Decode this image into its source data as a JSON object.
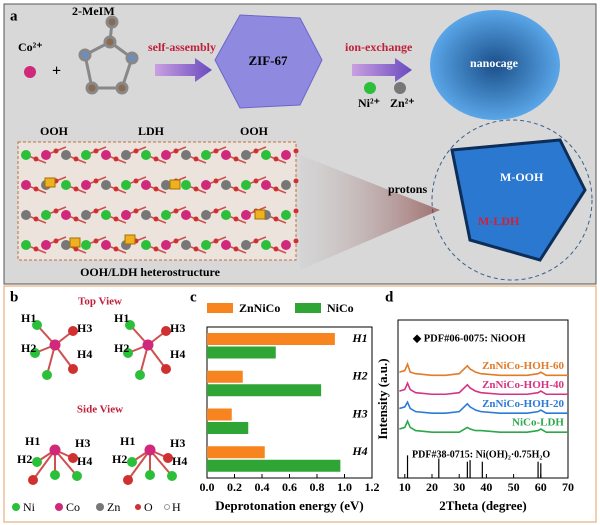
{
  "panel_a": {
    "label": "a",
    "co": "Co²⁺",
    "ligand": "2-MeIM",
    "step1": "self-assembly",
    "zif": "ZIF-67",
    "step2": "ion-exchange",
    "ni": "Ni²⁺",
    "zn": "Zn²⁺",
    "nanocage": "nanocage",
    "ooh": "OOH",
    "ldh": "LDH",
    "protons": "protons",
    "m_ooh": "M-OOH",
    "m_ldh": "M-LDH",
    "caption": "OOH/LDH heterostructure"
  },
  "panel_b": {
    "label": "b",
    "top_view": "Top View",
    "side_view": "Side View",
    "sites": [
      "H1",
      "H2",
      "H3",
      "H4"
    ],
    "legend": [
      "Ni",
      "Co",
      "Zn",
      "O",
      "H"
    ]
  },
  "chart_data": [
    {
      "type": "bar",
      "orientation": "horizontal",
      "label": "c",
      "categories": [
        "H1",
        "H2",
        "H3",
        "H4"
      ],
      "series": [
        {
          "name": "ZnNiCo",
          "color": "#f7841f",
          "values": [
            0.93,
            0.26,
            0.18,
            0.42
          ]
        },
        {
          "name": "NiCo",
          "color": "#2fa535",
          "values": [
            0.5,
            0.83,
            0.3,
            0.97
          ]
        }
      ],
      "xlabel": "Deprotonation energy (eV)",
      "xlim": [
        0,
        1.2
      ],
      "xticks": [
        {
          "value": 0,
          "label": "0.0"
        },
        0.2,
        0.4,
        0.6,
        0.8,
        {
          "value": 1,
          "label": "1.0"
        },
        1.2
      ]
    },
    {
      "type": "line",
      "label": "d",
      "annotation": "◆ PDF#06-0075: NiOOH",
      "x": [
        8,
        10,
        11,
        12,
        14,
        20,
        25,
        30,
        33,
        34,
        36,
        38,
        45,
        50,
        55,
        59,
        60,
        62,
        70
      ],
      "series": [
        {
          "name": "ZnNiCo-HOH-60",
          "color": "#e07b2a",
          "values": [
            67,
            68,
            72,
            67,
            66,
            65,
            65,
            66,
            71,
            69,
            67,
            66,
            65,
            65,
            65,
            66,
            67,
            65,
            65
          ]
        },
        {
          "name": "ZnNiCo-HOH-40",
          "color": "#d63384",
          "values": [
            55,
            56,
            60,
            56,
            54,
            53,
            53,
            54,
            59,
            57,
            55,
            54,
            53,
            53,
            53,
            54,
            55,
            53,
            53
          ]
        },
        {
          "name": "ZnNiCo-HOH-20",
          "color": "#2b7bd6",
          "values": [
            44,
            45,
            48,
            44,
            42,
            41,
            41,
            42,
            47,
            45,
            43,
            42,
            41,
            41,
            41,
            42,
            43,
            41,
            41
          ]
        },
        {
          "name": "NiCo-LDH",
          "color": "#2aa84a",
          "values": [
            31,
            32,
            36,
            32,
            30,
            29,
            29,
            29,
            32,
            31,
            30,
            30,
            29,
            29,
            29,
            30,
            31,
            29,
            29
          ]
        }
      ],
      "reference": {
        "name": "PDF#38-0715: Ni(OH)₂·0.75H₂O",
        "color": "#000000",
        "x": [
          11,
          22.5,
          33,
          34,
          38.5,
          59,
          60
        ],
        "values": [
          8,
          6,
          4,
          5,
          4,
          4,
          3
        ]
      },
      "xlabel": "2Theta (degree)",
      "ylabel": "Intensity (a.u.)",
      "xlim": [
        7.5,
        70
      ],
      "xticks": [
        10,
        20,
        30,
        40,
        50,
        60,
        70
      ],
      "ylim": [
        0,
        100
      ]
    }
  ]
}
